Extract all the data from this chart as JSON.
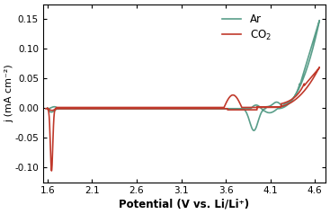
{
  "xlabel": "Potential (V vs. Li/Li⁺)",
  "ylabel": "j (mA cm⁻²)",
  "xlim": [
    1.55,
    4.72
  ],
  "ylim": [
    -0.125,
    0.175
  ],
  "yticks": [
    -0.1,
    -0.05,
    0.0,
    0.05,
    0.1,
    0.15
  ],
  "xticks": [
    1.6,
    2.1,
    2.6,
    3.1,
    3.6,
    4.1,
    4.6
  ],
  "ar_color": "#5a9e8a",
  "co2_color": "#c0392b",
  "background_color": "#ffffff",
  "linewidth": 1.2
}
